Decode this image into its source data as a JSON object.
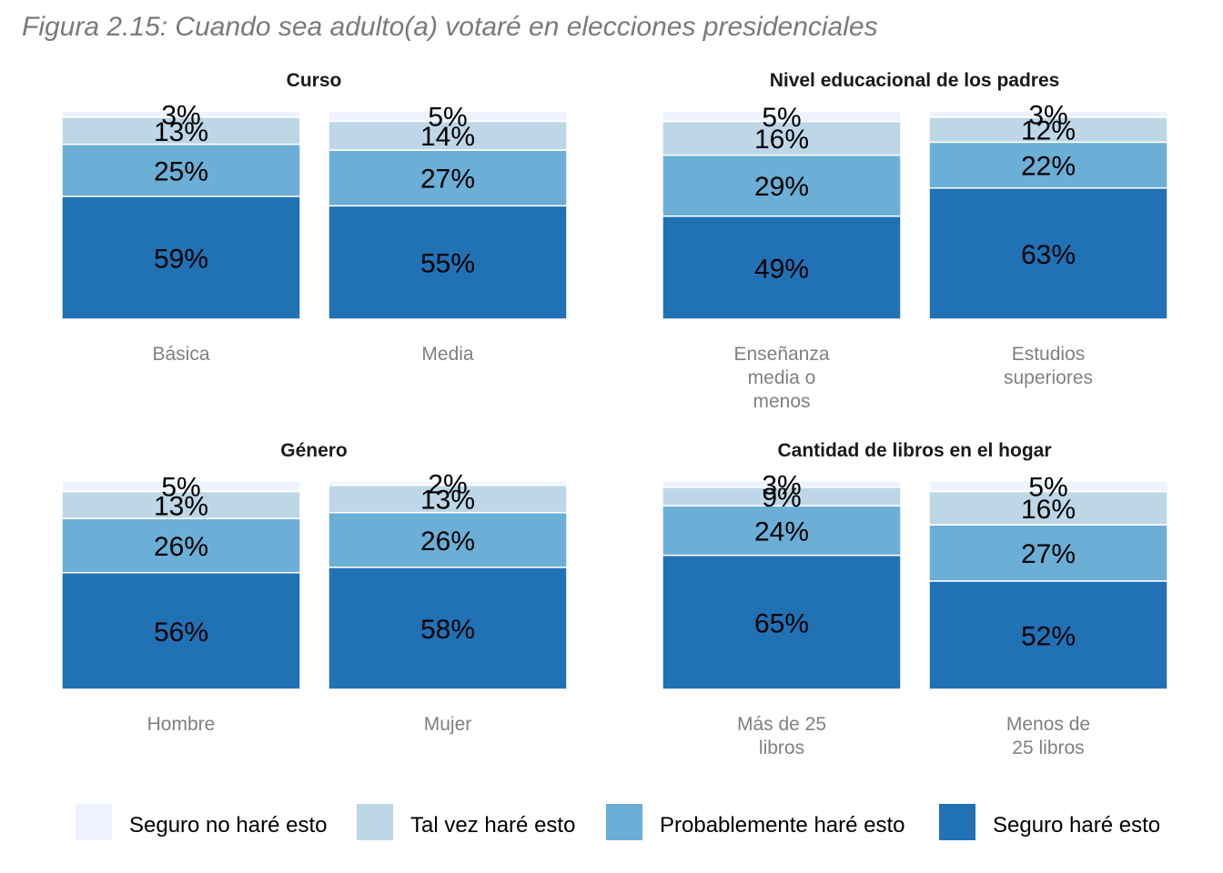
{
  "figure_title": "Figura 2.15: Cuando sea adulto(a) votaré en elecciones presidenciales",
  "colors": {
    "Seguro no haré esto": "#eff3ff",
    "Tal vez haré esto": "#bdd7e7",
    "Probablemente haré esto": "#6baed6",
    "Seguro haré esto": "#2171b5"
  },
  "legend": [
    "Seguro no haré esto",
    "Tal vez haré esto",
    "Probablemente haré esto",
    "Seguro haré esto"
  ],
  "chart_data": [
    {
      "type": "bar",
      "stacked": true,
      "title": "Curso",
      "categories": [
        [
          "Básica"
        ],
        [
          "Media"
        ]
      ],
      "series": [
        {
          "name": "Seguro no haré esto",
          "values": [
            3,
            5
          ]
        },
        {
          "name": "Tal vez haré esto",
          "values": [
            13,
            14
          ]
        },
        {
          "name": "Probablemente haré esto",
          "values": [
            25,
            27
          ]
        },
        {
          "name": "Seguro haré esto",
          "values": [
            59,
            55
          ]
        }
      ]
    },
    {
      "type": "bar",
      "stacked": true,
      "title": "Nivel educacional de los padres",
      "categories": [
        [
          "Enseñanza",
          "media o",
          "menos"
        ],
        [
          "Estudios",
          "superiores"
        ]
      ],
      "series": [
        {
          "name": "Seguro no haré esto",
          "values": [
            5,
            3
          ]
        },
        {
          "name": "Tal vez haré esto",
          "values": [
            16,
            12
          ]
        },
        {
          "name": "Probablemente haré esto",
          "values": [
            29,
            22
          ]
        },
        {
          "name": "Seguro haré esto",
          "values": [
            49,
            63
          ]
        }
      ]
    },
    {
      "type": "bar",
      "stacked": true,
      "title": "Género",
      "categories": [
        [
          "Hombre"
        ],
        [
          "Mujer"
        ]
      ],
      "series": [
        {
          "name": "Seguro no haré esto",
          "values": [
            5,
            2
          ]
        },
        {
          "name": "Tal vez haré esto",
          "values": [
            13,
            13
          ]
        },
        {
          "name": "Probablemente haré esto",
          "values": [
            26,
            26
          ]
        },
        {
          "name": "Seguro haré esto",
          "values": [
            56,
            58
          ]
        }
      ]
    },
    {
      "type": "bar",
      "stacked": true,
      "title": "Cantidad de libros en el hogar",
      "categories": [
        [
          "Más de 25",
          "libros"
        ],
        [
          "Menos de",
          "25 libros"
        ]
      ],
      "series": [
        {
          "name": "Seguro no haré esto",
          "values": [
            3,
            5
          ]
        },
        {
          "name": "Tal vez haré esto",
          "values": [
            9,
            16
          ]
        },
        {
          "name": "Probablemente haré esto",
          "values": [
            24,
            27
          ]
        },
        {
          "name": "Seguro haré esto",
          "values": [
            65,
            52
          ]
        }
      ]
    }
  ]
}
